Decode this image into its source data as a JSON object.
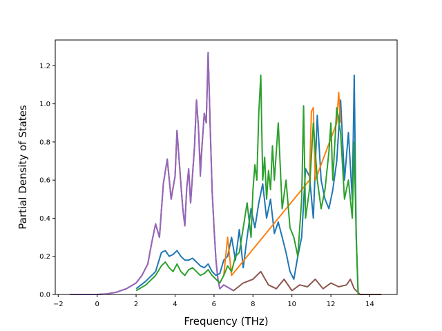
{
  "chart_data": {
    "type": "line",
    "title": "",
    "xlabel": "Frequency (THz)",
    "ylabel": "Partial Density of States",
    "xlim": [
      -2.15,
      15.4
    ],
    "ylim": [
      0.0,
      1.335
    ],
    "x_ticks": [
      -2,
      0,
      2,
      4,
      6,
      8,
      10,
      12,
      14
    ],
    "x_tick_labels": [
      "−2",
      "0",
      "2",
      "4",
      "6",
      "8",
      "10",
      "12",
      "14"
    ],
    "y_ticks": [
      0.0,
      0.2,
      0.4,
      0.6,
      0.8,
      1.0,
      1.2
    ],
    "y_tick_labels": [
      "0.0",
      "0.2",
      "0.4",
      "0.6",
      "0.8",
      "1.0",
      "1.2"
    ],
    "grid": false,
    "legend": "none",
    "series": [
      {
        "color": "#8c564b",
        "x": [
          -1.4,
          0,
          0.5,
          1.0,
          1.5,
          2.0,
          2.3,
          2.6,
          2.8,
          3.0,
          3.2,
          3.4,
          3.6,
          3.8,
          3.9,
          4.0,
          4.1,
          4.2,
          4.3,
          4.4,
          4.5,
          4.6,
          4.7,
          4.8,
          5.0,
          5.1,
          5.2,
          5.3,
          5.4,
          5.5,
          5.6,
          5.7,
          5.8,
          5.9,
          6.0,
          6.1,
          6.2,
          6.3,
          6.5,
          7.0,
          7.5,
          8.0,
          8.4,
          8.8,
          9.2,
          9.6,
          10.0,
          10.4,
          10.8,
          11.2,
          11.6,
          12.0,
          12.4,
          12.8,
          13.0,
          13.2,
          13.3,
          13.5,
          14.0,
          14.6
        ],
        "y": [
          0.0,
          0.0,
          0.003,
          0.012,
          0.03,
          0.06,
          0.1,
          0.16,
          0.27,
          0.37,
          0.3,
          0.58,
          0.71,
          0.5,
          0.56,
          0.62,
          0.86,
          0.72,
          0.58,
          0.45,
          0.36,
          0.56,
          0.65,
          0.48,
          0.78,
          1.02,
          0.88,
          0.66,
          0.8,
          0.95,
          0.9,
          1.27,
          0.9,
          0.55,
          0.35,
          0.18,
          0.08,
          0.03,
          0.05,
          0.02,
          0.06,
          0.08,
          0.12,
          0.05,
          0.03,
          0.08,
          0.02,
          0.05,
          0.04,
          0.08,
          0.03,
          0.06,
          0.04,
          0.05,
          0.08,
          0.03,
          0.02,
          0.0,
          0.0,
          0.0
        ]
      },
      {
        "color": "#9467bd",
        "x": [
          -1.4,
          0,
          0.5,
          1.0,
          1.5,
          2.0,
          2.3,
          2.6,
          2.8,
          3.0,
          3.2,
          3.4,
          3.6,
          3.8,
          3.9,
          4.0,
          4.1,
          4.2,
          4.3,
          4.4,
          4.5,
          4.6,
          4.7,
          4.8,
          5.0,
          5.1,
          5.2,
          5.3,
          5.4,
          5.5,
          5.6,
          5.7,
          5.8,
          5.9,
          6.0,
          6.1,
          6.2,
          6.3,
          6.5,
          7.0
        ],
        "y": [
          0.0,
          0.0,
          0.003,
          0.012,
          0.03,
          0.06,
          0.1,
          0.16,
          0.27,
          0.37,
          0.3,
          0.58,
          0.71,
          0.5,
          0.56,
          0.62,
          0.86,
          0.72,
          0.58,
          0.45,
          0.36,
          0.56,
          0.66,
          0.48,
          0.78,
          1.02,
          0.88,
          0.62,
          0.8,
          0.95,
          0.9,
          1.27,
          0.9,
          0.55,
          0.35,
          0.18,
          0.08,
          0.03,
          0.05,
          0.02
        ]
      },
      {
        "color": "#1f77b4",
        "x": [
          2.0,
          2.5,
          3.0,
          3.3,
          3.5,
          3.7,
          3.9,
          4.1,
          4.3,
          4.5,
          4.7,
          4.9,
          5.1,
          5.3,
          5.5,
          5.7,
          5.9,
          6.1,
          6.3,
          6.5,
          6.7,
          6.9,
          7.1,
          7.3,
          7.5,
          7.7,
          7.9,
          8.1,
          8.3,
          8.5,
          8.7,
          8.9,
          9.1,
          9.3,
          9.5,
          9.7,
          9.9,
          10.1,
          10.3,
          10.5,
          10.7,
          10.9,
          11.1,
          11.3,
          11.5,
          11.7,
          11.9,
          12.1,
          12.3,
          12.5,
          12.7,
          12.9,
          13.1,
          13.2,
          13.3,
          13.4
        ],
        "y": [
          0.03,
          0.07,
          0.12,
          0.22,
          0.23,
          0.2,
          0.21,
          0.23,
          0.2,
          0.18,
          0.18,
          0.19,
          0.17,
          0.15,
          0.14,
          0.16,
          0.12,
          0.1,
          0.11,
          0.18,
          0.2,
          0.3,
          0.18,
          0.34,
          0.14,
          0.3,
          0.45,
          0.35,
          0.48,
          0.58,
          0.4,
          0.5,
          0.32,
          0.38,
          0.3,
          0.22,
          0.12,
          0.08,
          0.2,
          0.3,
          0.66,
          0.62,
          0.4,
          0.94,
          0.6,
          0.5,
          0.45,
          0.55,
          0.7,
          1.02,
          0.6,
          0.85,
          0.5,
          1.15,
          0.3,
          0.0
        ]
      },
      {
        "color": "#ff7f0e",
        "x": [
          6.5,
          6.6,
          6.7,
          6.8,
          6.9,
          10.9,
          11.0,
          11.1,
          11.2,
          12.3,
          12.4,
          12.5
        ],
        "y": [
          0.1,
          0.2,
          0.3,
          0.2,
          0.1,
          0.6,
          0.96,
          0.98,
          0.6,
          0.9,
          1.06,
          0.9
        ]
      },
      {
        "color": "#2ca02c",
        "x": [
          2.0,
          2.5,
          3.0,
          3.3,
          3.5,
          3.7,
          3.9,
          4.1,
          4.3,
          4.5,
          4.7,
          4.9,
          5.1,
          5.3,
          5.5,
          5.7,
          5.9,
          6.1,
          6.3,
          6.5,
          6.7,
          6.9,
          7.1,
          7.3,
          7.5,
          7.7,
          7.9,
          8.0,
          8.1,
          8.2,
          8.3,
          8.4,
          8.5,
          8.6,
          8.7,
          8.8,
          8.9,
          9.0,
          9.1,
          9.3,
          9.5,
          9.7,
          9.9,
          10.1,
          10.3,
          10.5,
          10.6,
          10.7,
          10.9,
          11.1,
          11.3,
          11.5,
          11.7,
          11.9,
          12.0,
          12.1,
          12.3,
          12.5,
          12.7,
          12.9,
          13.1,
          13.2,
          13.3,
          13.4
        ],
        "y": [
          0.02,
          0.05,
          0.1,
          0.15,
          0.17,
          0.14,
          0.12,
          0.16,
          0.12,
          0.1,
          0.13,
          0.14,
          0.12,
          0.1,
          0.11,
          0.13,
          0.1,
          0.08,
          0.06,
          0.1,
          0.15,
          0.12,
          0.2,
          0.22,
          0.35,
          0.48,
          0.3,
          0.55,
          0.68,
          0.6,
          0.95,
          1.15,
          0.6,
          0.72,
          0.5,
          0.65,
          0.55,
          0.78,
          0.6,
          0.9,
          0.45,
          0.6,
          0.35,
          0.3,
          0.2,
          0.5,
          0.99,
          0.4,
          0.55,
          0.9,
          0.6,
          0.45,
          0.55,
          0.75,
          0.9,
          0.6,
          0.98,
          0.85,
          0.5,
          0.6,
          0.4,
          0.8,
          0.3,
          0.0
        ]
      }
    ]
  }
}
